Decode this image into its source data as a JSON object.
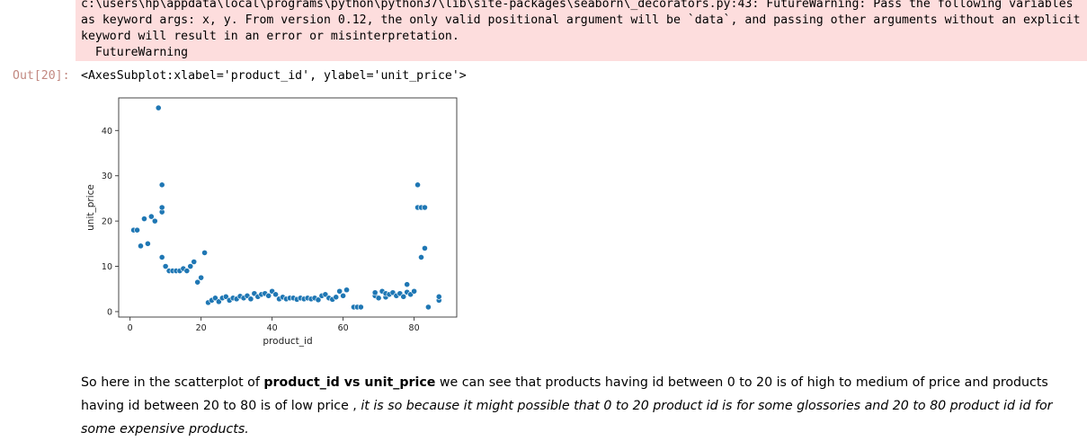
{
  "stderr": {
    "lines": [
      "c:\\users\\hp\\appdata\\local\\programs\\python\\python37\\lib\\site-packages\\seaborn\\_decorators.py:43: FutureWarning: Pass the following variables",
      "as keyword args: x, y. From version 0.12, the only valid positional argument will be `data`, and passing other arguments without an explicit",
      "keyword will result in an error or misinterpretation.",
      "  FutureWarning"
    ]
  },
  "output": {
    "prompt": "Out[20]:",
    "text": "<AxesSubplot:xlabel='product_id', ylabel='unit_price'>"
  },
  "chart_data": {
    "type": "scatter",
    "xlabel": "product_id",
    "ylabel": "unit_price",
    "xlim": [
      -3.2,
      92
    ],
    "ylim": [
      -1.2,
      47.2
    ],
    "xticks": [
      0,
      20,
      40,
      60,
      80
    ],
    "yticks": [
      0,
      10,
      20,
      30,
      40
    ],
    "grid": false,
    "color": "#1f77b4",
    "points": [
      [
        1,
        18
      ],
      [
        2,
        18
      ],
      [
        3,
        14.5
      ],
      [
        4,
        20.5
      ],
      [
        5,
        15
      ],
      [
        6,
        21
      ],
      [
        7,
        20
      ],
      [
        8,
        45
      ],
      [
        9,
        22
      ],
      [
        9,
        23
      ],
      [
        9,
        28
      ],
      [
        9,
        12
      ],
      [
        10,
        10
      ],
      [
        11,
        9
      ],
      [
        12,
        9
      ],
      [
        13,
        9
      ],
      [
        14,
        9
      ],
      [
        15,
        9.5
      ],
      [
        16,
        9
      ],
      [
        17,
        10
      ],
      [
        18,
        11
      ],
      [
        19,
        6.5
      ],
      [
        20,
        7.5
      ],
      [
        21,
        13
      ],
      [
        22,
        2
      ],
      [
        23,
        2.5
      ],
      [
        24,
        3
      ],
      [
        25,
        2.2
      ],
      [
        26,
        3
      ],
      [
        27,
        3.3
      ],
      [
        28,
        2.5
      ],
      [
        29,
        3
      ],
      [
        30,
        2.8
      ],
      [
        31,
        3.4
      ],
      [
        32,
        3
      ],
      [
        33,
        3.5
      ],
      [
        34,
        2.8
      ],
      [
        35,
        4
      ],
      [
        36,
        3.3
      ],
      [
        37,
        3.8
      ],
      [
        38,
        4
      ],
      [
        39,
        3.5
      ],
      [
        40,
        4.5
      ],
      [
        41,
        3.8
      ],
      [
        42,
        2.8
      ],
      [
        43,
        3.2
      ],
      [
        44,
        2.8
      ],
      [
        45,
        3
      ],
      [
        46,
        3
      ],
      [
        47,
        2.7
      ],
      [
        48,
        3
      ],
      [
        49,
        2.8
      ],
      [
        50,
        3
      ],
      [
        51,
        2.8
      ],
      [
        52,
        3
      ],
      [
        53,
        2.6
      ],
      [
        54,
        3.5
      ],
      [
        55,
        3.8
      ],
      [
        56,
        3
      ],
      [
        57,
        2.7
      ],
      [
        58,
        3.2
      ],
      [
        59,
        4.5
      ],
      [
        60,
        3.5
      ],
      [
        61,
        4.8
      ],
      [
        63,
        1
      ],
      [
        64,
        1
      ],
      [
        65,
        1
      ],
      [
        69,
        3.5
      ],
      [
        69,
        4.2
      ],
      [
        70,
        3
      ],
      [
        71,
        4.5
      ],
      [
        72,
        3.2
      ],
      [
        72,
        4
      ],
      [
        73,
        3.8
      ],
      [
        74,
        4.2
      ],
      [
        75,
        3.5
      ],
      [
        76,
        4
      ],
      [
        77,
        3.3
      ],
      [
        78,
        4.3
      ],
      [
        78,
        6
      ],
      [
        79,
        3.8
      ],
      [
        80,
        4.5
      ],
      [
        81,
        28
      ],
      [
        81,
        23
      ],
      [
        82,
        23
      ],
      [
        82,
        12
      ],
      [
        83,
        23
      ],
      [
        83,
        14
      ],
      [
        84,
        1
      ],
      [
        87,
        2.5
      ],
      [
        87,
        3.3
      ]
    ]
  },
  "markdown": {
    "p1": "So here in the scatterplot of ",
    "b1": "product_id vs unit_price",
    "p2": " we can see that products having id between 0 to 20 is of high to medium of price and products having id between 20 to 80 is of low price , ",
    "i1": "it is so because it might possible that 0 to 20 product id is for some glossories and 20 to 80 product id id for some expensive products."
  }
}
